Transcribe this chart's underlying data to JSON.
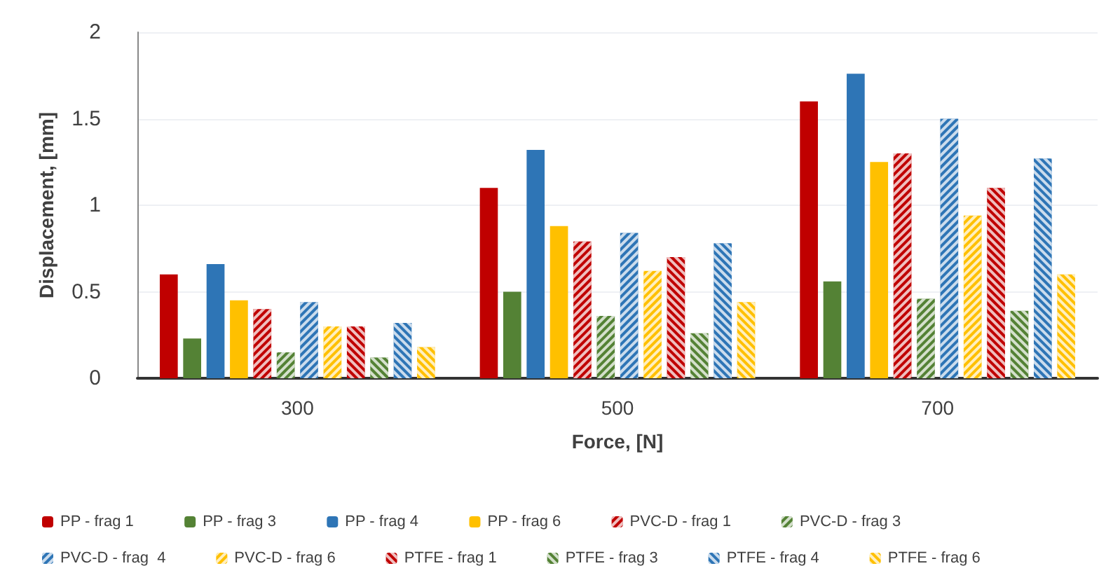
{
  "chart_data": {
    "type": "bar",
    "xlabel": "Force, [N]",
    "ylabel": "Displacement, [mm]",
    "categories": [
      "300",
      "500",
      "700"
    ],
    "ylim": [
      0,
      2
    ],
    "yticks": [
      0,
      0.5,
      1,
      1.5,
      2
    ],
    "grid": "y",
    "legend": "bottom",
    "series": [
      {
        "name": "PP - frag 1",
        "color": "#c00000",
        "values": [
          0.6,
          1.1,
          1.6
        ]
      },
      {
        "name": "PP - frag 3",
        "color": "#548235",
        "values": [
          0.23,
          0.5,
          0.56
        ]
      },
      {
        "name": "PP - frag 4",
        "color": "#2e75b6",
        "values": [
          0.66,
          1.32,
          1.76
        ]
      },
      {
        "name": "PP - frag 6",
        "color": "#ffc000",
        "values": [
          0.45,
          0.88,
          1.25
        ]
      },
      {
        "name": "PVC-D - frag 1",
        "color": "#c00000",
        "values": [
          0.4,
          0.79,
          1.3
        ]
      },
      {
        "name": "PVC-D - frag 3",
        "color": "#548235",
        "values": [
          0.15,
          0.36,
          0.46
        ]
      },
      {
        "name": "PVC-D - frag  4",
        "color": "#2e75b6",
        "values": [
          0.44,
          0.84,
          1.5
        ]
      },
      {
        "name": "PVC-D - frag 6",
        "color": "#ffc000",
        "values": [
          0.3,
          0.62,
          0.94
        ]
      },
      {
        "name": "PTFE - frag 1",
        "color": "#c00000",
        "values": [
          0.3,
          0.7,
          1.1
        ]
      },
      {
        "name": "PTFE - frag 3",
        "color": "#548235",
        "values": [
          0.12,
          0.26,
          0.39
        ]
      },
      {
        "name": "PTFE - frag 4",
        "color": "#2e75b6",
        "values": [
          0.32,
          0.78,
          1.27
        ]
      },
      {
        "name": "PTFE - frag 6",
        "color": "#ffc000",
        "values": [
          0.18,
          0.44,
          0.6
        ]
      }
    ]
  }
}
